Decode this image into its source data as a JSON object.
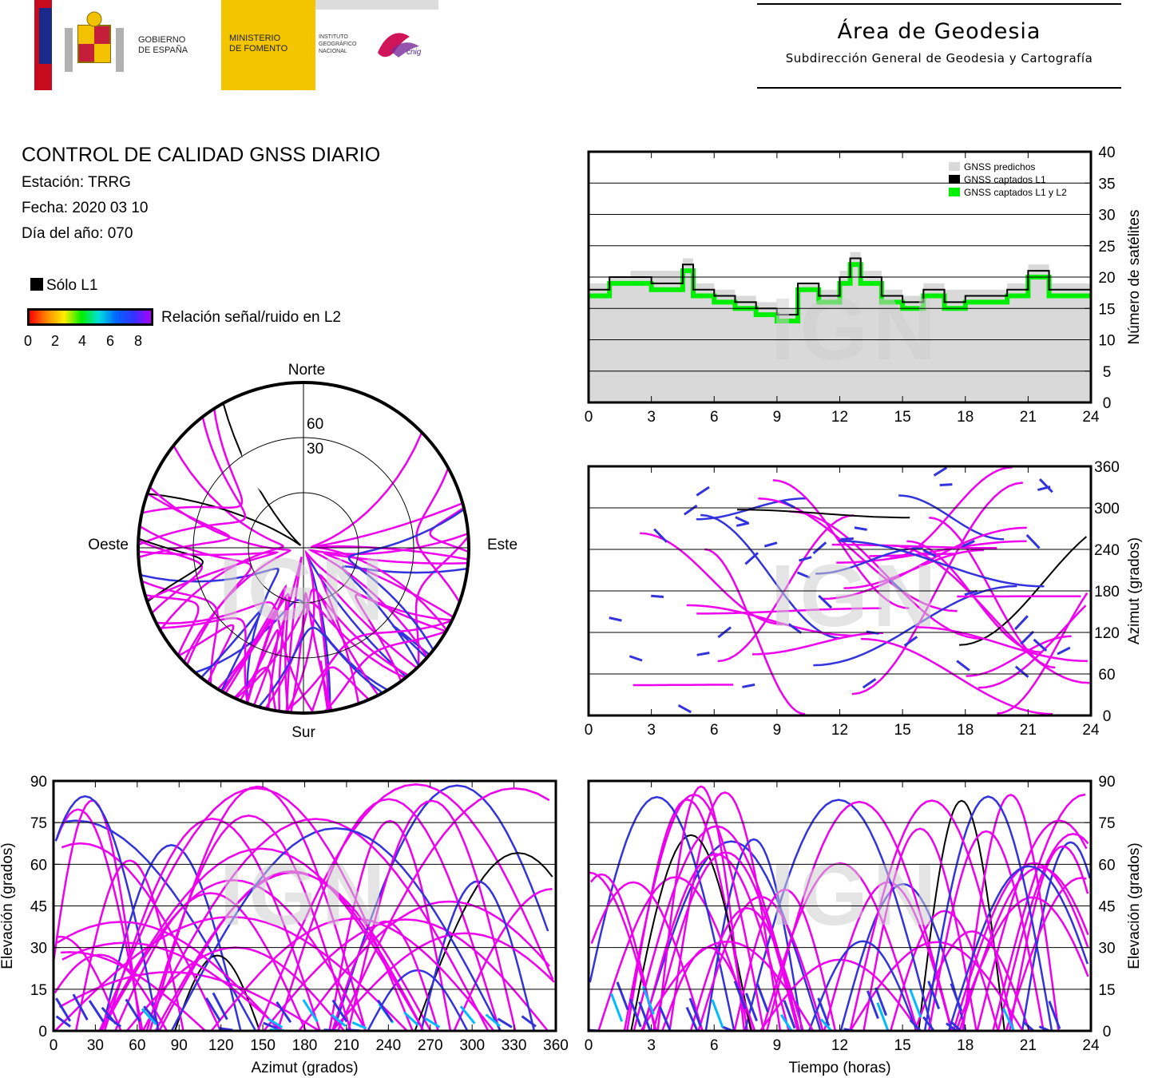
{
  "header": {
    "gov_line1": "GOBIERNO",
    "gov_line2": "DE ESPAÑA",
    "min_line1": "MINISTERIO",
    "min_line2": "DE FOMENTO",
    "ign_line1": "INSTITUTO",
    "ign_line2": "GEOGRÁFICO",
    "ign_line3": "NACIONAL",
    "cnig": "cnig",
    "area_title": "Área de Geodesia",
    "area_subtitle": "Subdirección General de Geodesia y Cartografía"
  },
  "info": {
    "title": "CONTROL DE CALIDAD GNSS DIARIO",
    "station": "Estación: TRRG",
    "date": "Fecha: 2020 03 10",
    "doy": "Día del año: 070",
    "legend_l1": "Sólo L1",
    "legend_snr": "Relación señal/ruido en L2",
    "snr_ticks": [
      "0",
      "2",
      "4",
      "6",
      "8"
    ]
  },
  "watermark": "IGN",
  "colors": {
    "predicted": "#d9d9d9",
    "l1": "#000000",
    "l1l2": "#00ee00",
    "track": "#ee00ee",
    "low_snr": "#3333dd",
    "lowest_snr": "#00bbff"
  },
  "chart_data": [
    {
      "id": "satellites",
      "type": "area",
      "xlabel": "",
      "ylabel": "Número de satélites",
      "xlim": [
        0,
        24
      ],
      "ylim": [
        0,
        40
      ],
      "xticks": [
        "0",
        "3",
        "6",
        "9",
        "12",
        "15",
        "18",
        "21",
        "24"
      ],
      "yticks": [
        "0",
        "5",
        "10",
        "15",
        "20",
        "25",
        "30",
        "35",
        "40"
      ],
      "legend": [
        "GNSS predichos",
        "GNSS captados L1",
        "GNSS captados L1 y L2"
      ],
      "legend_position": "top-right",
      "x": [
        0,
        1,
        2,
        3,
        4,
        4.5,
        5,
        6,
        7,
        8,
        9,
        10,
        11,
        12,
        12.5,
        13,
        14,
        15,
        16,
        17,
        18,
        19,
        20,
        21,
        22,
        23,
        24
      ],
      "series": [
        {
          "name": "GNSS predichos",
          "values": [
            19,
            20,
            21,
            21,
            21,
            23,
            19,
            18,
            17,
            16,
            15,
            19,
            18,
            21,
            24,
            21,
            18,
            17,
            19,
            18,
            18,
            18,
            19,
            22,
            19,
            19,
            19
          ]
        },
        {
          "name": "GNSS captados L1",
          "values": [
            18,
            20,
            20,
            19,
            19,
            22,
            18,
            17,
            16,
            15,
            14,
            19,
            17,
            20,
            23,
            20,
            17,
            16,
            18,
            16,
            17,
            17,
            18,
            21,
            18,
            18,
            18
          ]
        },
        {
          "name": "GNSS captados L1 y L2",
          "values": [
            17,
            19,
            19,
            18,
            18,
            21,
            17,
            16,
            15,
            14,
            13,
            18,
            16,
            19,
            22,
            19,
            16,
            15,
            17,
            15,
            16,
            16,
            17,
            20,
            17,
            17,
            17
          ]
        }
      ]
    },
    {
      "id": "azimuth-time",
      "type": "scatter",
      "xlabel": "",
      "ylabel": "Azimut (grados)",
      "xlim": [
        0,
        24
      ],
      "ylim": [
        0,
        360
      ],
      "xticks": [
        "0",
        "3",
        "6",
        "9",
        "12",
        "15",
        "18",
        "21",
        "24"
      ],
      "yticks": [
        "0",
        "60",
        "120",
        "180",
        "240",
        "300",
        "360"
      ]
    },
    {
      "id": "elevation-azimuth",
      "type": "scatter",
      "xlabel": "Azimut (grados)",
      "ylabel": "Elevación (grados)",
      "xlim": [
        0,
        360
      ],
      "ylim": [
        0,
        90
      ],
      "xticks": [
        "0",
        "30",
        "60",
        "90",
        "120",
        "150",
        "180",
        "210",
        "240",
        "270",
        "300",
        "330",
        "360"
      ],
      "yticks": [
        "0",
        "15",
        "30",
        "45",
        "60",
        "75",
        "90"
      ]
    },
    {
      "id": "elevation-time",
      "type": "line",
      "xlabel": "Tiempo (horas)",
      "ylabel": "Elevación (grados)",
      "xlim": [
        0,
        24
      ],
      "ylim": [
        0,
        90
      ],
      "xticks": [
        "0",
        "3",
        "6",
        "9",
        "12",
        "15",
        "18",
        "21",
        "24"
      ],
      "yticks": [
        "0",
        "15",
        "30",
        "45",
        "60",
        "75",
        "90"
      ]
    },
    {
      "id": "skyplot",
      "type": "scatter",
      "directions": {
        "north": "Norte",
        "south": "Sur",
        "east": "Este",
        "west": "Oeste"
      },
      "ring_labels": [
        "30",
        "60"
      ]
    }
  ]
}
